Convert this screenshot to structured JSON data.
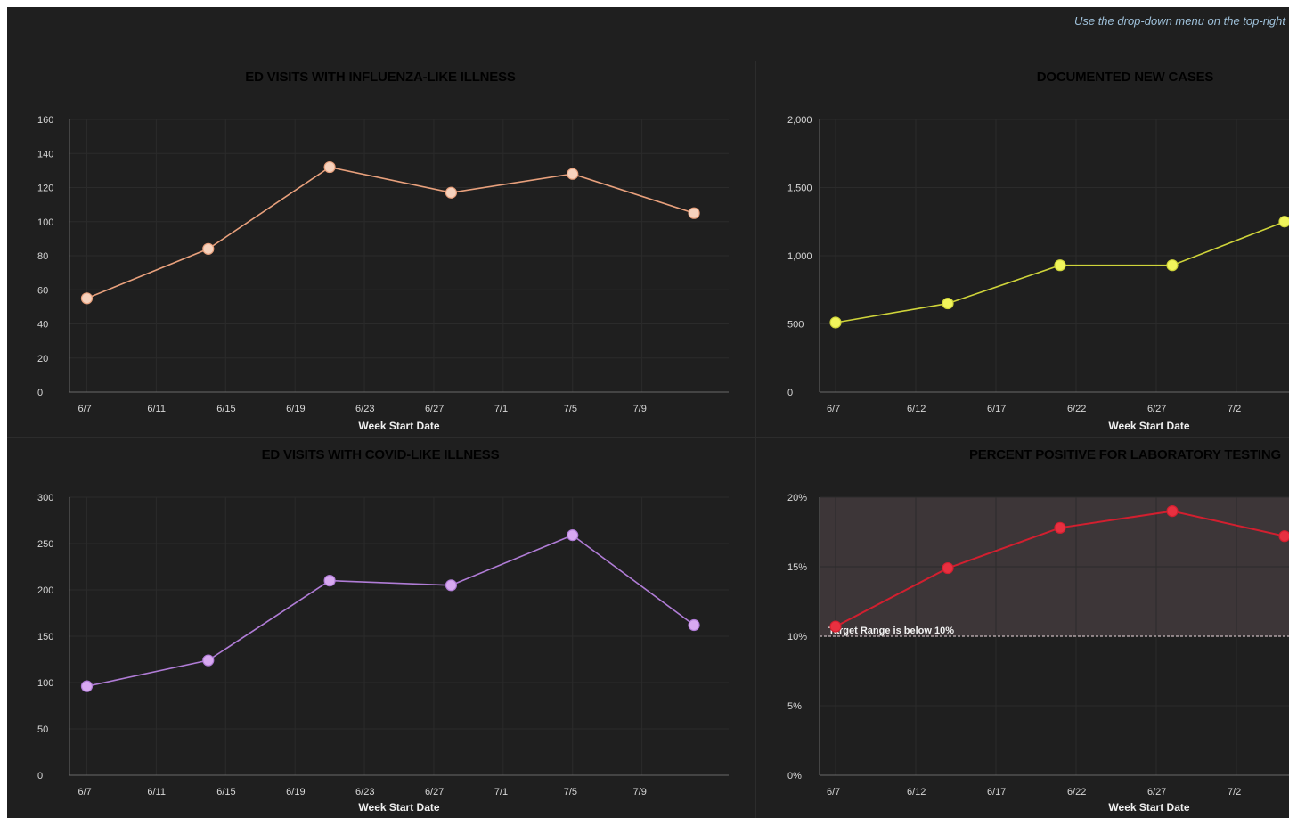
{
  "hint_text": "Use the drop-down menu on the top-right",
  "colors": {
    "background": "#1f1f1f",
    "axis": "#6a6a6a",
    "grid": "#2b2b2b",
    "tick": "#d8d8d8"
  },
  "chart_data": [
    {
      "id": "ili",
      "type": "line",
      "title": "ED VISITS WITH INFLUENZA-LIKE ILLNESS",
      "color": "#e8a07c",
      "marker_fill": "#f6d2bd",
      "xlabel": "Week Start Date",
      "ylabel": "",
      "x_range": [
        "2020-06-06",
        "2020-07-14"
      ],
      "x_ticks": [
        {
          "date": "2020-06-07",
          "label": "6/7"
        },
        {
          "date": "2020-06-11",
          "label": "6/11"
        },
        {
          "date": "2020-06-15",
          "label": "6/15"
        },
        {
          "date": "2020-06-19",
          "label": "6/19"
        },
        {
          "date": "2020-06-23",
          "label": "6/23"
        },
        {
          "date": "2020-06-27",
          "label": "6/27"
        },
        {
          "date": "2020-07-01",
          "label": "7/1"
        },
        {
          "date": "2020-07-05",
          "label": "7/5"
        },
        {
          "date": "2020-07-09",
          "label": "7/9"
        }
      ],
      "ylim": [
        0,
        160
      ],
      "y_ticks": [
        {
          "value": 0,
          "label": "0"
        },
        {
          "value": 20,
          "label": "20"
        },
        {
          "value": 40,
          "label": "40"
        },
        {
          "value": 60,
          "label": "60"
        },
        {
          "value": 80,
          "label": "80"
        },
        {
          "value": 100,
          "label": "100"
        },
        {
          "value": 120,
          "label": "120"
        },
        {
          "value": 140,
          "label": "140"
        },
        {
          "value": 160,
          "label": "160"
        }
      ],
      "series": [
        {
          "x": [
            "2020-06-07",
            "2020-06-14",
            "2020-06-21",
            "2020-06-28",
            "2020-07-05",
            "2020-07-12"
          ],
          "values": [
            55,
            84,
            132,
            117,
            128,
            105
          ]
        }
      ]
    },
    {
      "id": "cases",
      "type": "line",
      "title": "DOCUMENTED NEW CASES",
      "color": "#cfd43a",
      "marker_fill": "#f1f55c",
      "xlabel": "Week Start Date",
      "ylabel": "",
      "x_range": [
        "2020-06-06",
        "2020-07-06"
      ],
      "x_ticks": [
        {
          "date": "2020-06-07",
          "label": "6/7"
        },
        {
          "date": "2020-06-12",
          "label": "6/12"
        },
        {
          "date": "2020-06-17",
          "label": "6/17"
        },
        {
          "date": "2020-06-22",
          "label": "6/22"
        },
        {
          "date": "2020-06-27",
          "label": "6/27"
        },
        {
          "date": "2020-07-02",
          "label": "7/2"
        }
      ],
      "ylim": [
        0,
        2000
      ],
      "y_ticks": [
        {
          "value": 0,
          "label": "0"
        },
        {
          "value": 500,
          "label": "500"
        },
        {
          "value": 1000,
          "label": "1,000"
        },
        {
          "value": 1500,
          "label": "1,500"
        },
        {
          "value": 2000,
          "label": "2,000"
        }
      ],
      "series": [
        {
          "x": [
            "2020-06-07",
            "2020-06-14",
            "2020-06-21",
            "2020-06-28",
            "2020-07-05"
          ],
          "values": [
            510,
            650,
            930,
            930,
            1250
          ]
        }
      ]
    },
    {
      "id": "cli",
      "type": "line",
      "title": "ED VISITS WITH COVID-LIKE ILLNESS",
      "color": "#b07cd6",
      "marker_fill": "#d8a9f1",
      "xlabel": "Week Start Date",
      "ylabel": "",
      "x_range": [
        "2020-06-06",
        "2020-07-14"
      ],
      "x_ticks": [
        {
          "date": "2020-06-07",
          "label": "6/7"
        },
        {
          "date": "2020-06-11",
          "label": "6/11"
        },
        {
          "date": "2020-06-15",
          "label": "6/15"
        },
        {
          "date": "2020-06-19",
          "label": "6/19"
        },
        {
          "date": "2020-06-23",
          "label": "6/23"
        },
        {
          "date": "2020-06-27",
          "label": "6/27"
        },
        {
          "date": "2020-07-01",
          "label": "7/1"
        },
        {
          "date": "2020-07-05",
          "label": "7/5"
        },
        {
          "date": "2020-07-09",
          "label": "7/9"
        }
      ],
      "ylim": [
        0,
        300
      ],
      "y_ticks": [
        {
          "value": 0,
          "label": "0"
        },
        {
          "value": 50,
          "label": "50"
        },
        {
          "value": 100,
          "label": "100"
        },
        {
          "value": 150,
          "label": "150"
        },
        {
          "value": 200,
          "label": "200"
        },
        {
          "value": 250,
          "label": "250"
        },
        {
          "value": 300,
          "label": "300"
        }
      ],
      "series": [
        {
          "x": [
            "2020-06-07",
            "2020-06-14",
            "2020-06-21",
            "2020-06-28",
            "2020-07-05",
            "2020-07-12"
          ],
          "values": [
            96,
            124,
            210,
            205,
            259,
            162
          ]
        }
      ]
    },
    {
      "id": "positivity",
      "type": "line",
      "title": "PERCENT POSITIVE FOR LABORATORY TESTING",
      "color": "#d21f2f",
      "marker_fill": "#e83040",
      "xlabel": "Week Start Date",
      "ylabel": "",
      "x_range": [
        "2020-06-06",
        "2020-07-06"
      ],
      "x_ticks": [
        {
          "date": "2020-06-07",
          "label": "6/7"
        },
        {
          "date": "2020-06-12",
          "label": "6/12"
        },
        {
          "date": "2020-06-17",
          "label": "6/17"
        },
        {
          "date": "2020-06-22",
          "label": "6/22"
        },
        {
          "date": "2020-06-27",
          "label": "6/27"
        },
        {
          "date": "2020-07-02",
          "label": "7/2"
        }
      ],
      "ylim": [
        0,
        20
      ],
      "y_ticks": [
        {
          "value": 0,
          "label": "0%"
        },
        {
          "value": 5,
          "label": "5%"
        },
        {
          "value": 10,
          "label": "10%"
        },
        {
          "value": 15,
          "label": "15%"
        },
        {
          "value": 20,
          "label": "20%"
        }
      ],
      "band": {
        "from": 10,
        "to": 20,
        "color": "#3d3638"
      },
      "reference_line": {
        "value": 10,
        "label": "Target Range is below 10%",
        "color": "#c8b8bc"
      },
      "series": [
        {
          "x": [
            "2020-06-07",
            "2020-06-14",
            "2020-06-21",
            "2020-06-28",
            "2020-07-05"
          ],
          "values": [
            10.7,
            14.9,
            17.8,
            19.0,
            17.2
          ]
        }
      ]
    }
  ]
}
